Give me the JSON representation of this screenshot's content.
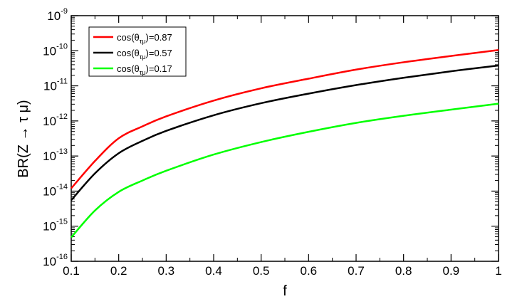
{
  "chart_data": {
    "type": "line",
    "title": "",
    "xlabel": "f",
    "ylabel": "BR(Z → τ μ)",
    "xlim": [
      0.1,
      1.0
    ],
    "ylim": [
      1e-16,
      1e-09
    ],
    "yscale": "log",
    "x_ticks": [
      "0.1",
      "0.2",
      "0.3",
      "0.4",
      "0.5",
      "0.6",
      "0.7",
      "0.8",
      "0.9",
      "1"
    ],
    "y_ticks": [
      {
        "base": "10",
        "exp": "-16"
      },
      {
        "base": "10",
        "exp": "-15"
      },
      {
        "base": "10",
        "exp": "-14"
      },
      {
        "base": "10",
        "exp": "-13"
      },
      {
        "base": "10",
        "exp": "-12"
      },
      {
        "base": "10",
        "exp": "-11"
      },
      {
        "base": "10",
        "exp": "-10"
      },
      {
        "base": "10",
        "exp": "-9"
      }
    ],
    "grid": false,
    "legend_position": "top-left",
    "x": [
      0.1,
      0.15,
      0.2,
      0.25,
      0.3,
      0.4,
      0.5,
      0.6,
      0.7,
      0.8,
      0.9,
      1.0
    ],
    "series": [
      {
        "name_prefix": "cos(θ",
        "name_sub": "τμ",
        "name_suffix": ")=0.87",
        "color": "#ff0000",
        "values": [
          1.2e-14,
          7.2e-14,
          3.2e-13,
          7e-13,
          1.35e-12,
          3.8e-12,
          8.5e-12,
          1.6e-11,
          2.9e-11,
          4.7e-11,
          7.1e-11,
          1.05e-10
        ]
      },
      {
        "name_prefix": "cos(θ",
        "name_sub": "τμ",
        "name_suffix": ")=0.57",
        "color": "#000000",
        "values": [
          5.5e-15,
          3.2e-14,
          1.2e-13,
          2.7e-13,
          5.2e-13,
          1.45e-12,
          3.2e-12,
          6e-12,
          1.05e-11,
          1.7e-11,
          2.6e-11,
          3.8e-11
        ]
      },
      {
        "name_prefix": "cos(θ",
        "name_sub": "τμ",
        "name_suffix": ")=0.17",
        "color": "#00ff00",
        "values": [
          4.8e-16,
          2.8e-15,
          9.5e-15,
          2e-14,
          3.8e-14,
          1.1e-13,
          2.5e-13,
          4.9e-13,
          8.8e-13,
          1.4e-12,
          2.1e-12,
          3.1e-12
        ]
      }
    ]
  }
}
